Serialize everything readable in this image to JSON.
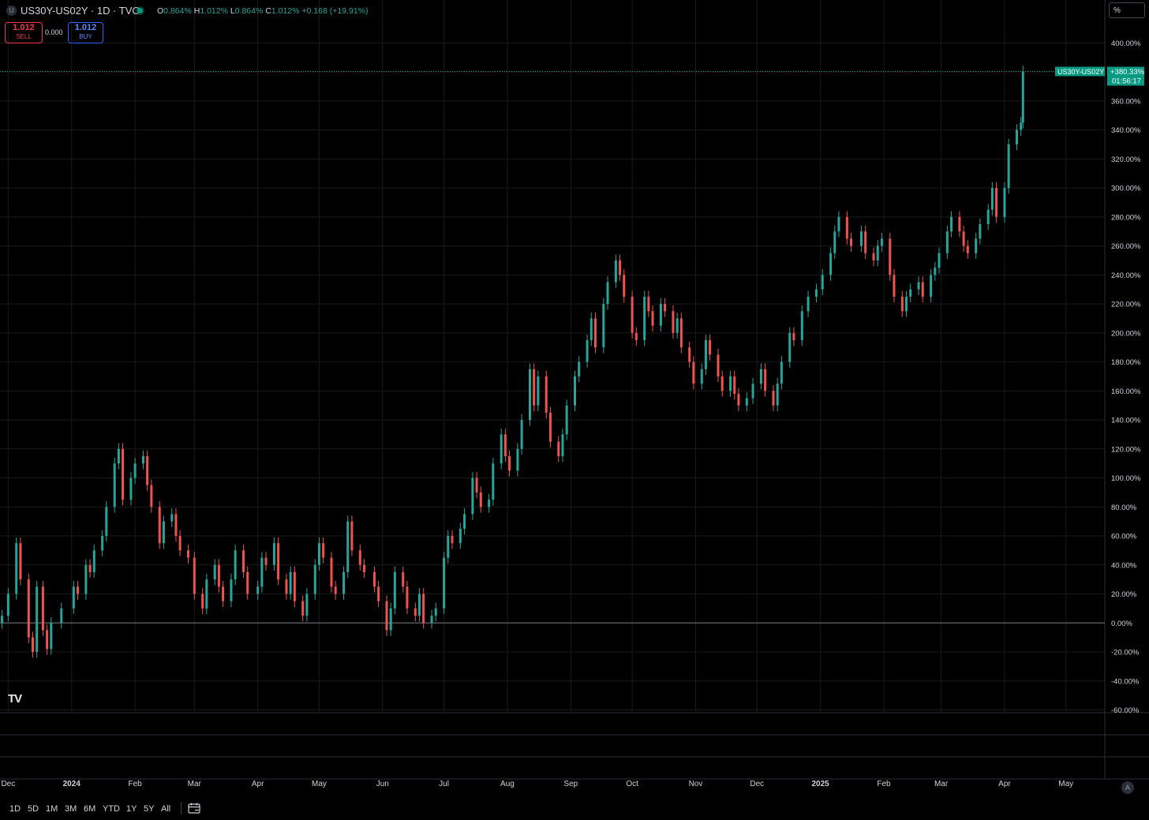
{
  "header": {
    "symbol_title": "US30Y-US02Y · 1D · TVC",
    "ohlc": {
      "o_label": "O",
      "o": "0.864%",
      "h_label": "H",
      "h": "1.012%",
      "l_label": "L",
      "l": "0.864%",
      "c_label": "C",
      "c": "1.012%",
      "change": "+0.168 (+19.91%)"
    },
    "sell": {
      "price": "1.012",
      "label": "SELL"
    },
    "spread": "0.000",
    "buy": {
      "price": "1.012",
      "label": "BUY"
    },
    "scale_mode": "%"
  },
  "colors": {
    "up": "#26a69a",
    "down": "#ef5350",
    "background": "#000000",
    "grid": "#1a1a1a",
    "zero_line": "#787b86",
    "last_price": "#089981"
  },
  "last_price_label": {
    "symbol": "US30Y-US02Y",
    "value": "+380.33%",
    "countdown": "01:56:17"
  },
  "logo_text": "TV",
  "bottom_bar": {
    "ranges": [
      "1D",
      "5D",
      "1M",
      "3M",
      "6M",
      "YTD",
      "1Y",
      "5Y",
      "All"
    ],
    "calendar_icon": "calendar-icon",
    "auto_label": "A"
  },
  "chart_data": {
    "type": "candlestick",
    "title": "",
    "ylim": [
      -60,
      400
    ],
    "y_ticks": [
      "400.00%",
      "380.00%",
      "360.00%",
      "340.00%",
      "320.00%",
      "300.00%",
      "280.00%",
      "260.00%",
      "240.00%",
      "220.00%",
      "200.00%",
      "180.00%",
      "160.00%",
      "140.00%",
      "120.00%",
      "100.00%",
      "80.00%",
      "60.00%",
      "40.00%",
      "20.00%",
      "0.00%",
      "-20.00%",
      "-40.00%",
      "-60.00%"
    ],
    "y_tick_values": [
      400,
      380,
      360,
      340,
      320,
      300,
      280,
      260,
      240,
      220,
      200,
      180,
      160,
      140,
      120,
      100,
      80,
      60,
      40,
      20,
      0,
      -20,
      -40,
      -60
    ],
    "x_labels": [
      "Dec",
      "2024",
      "Feb",
      "Mar",
      "Apr",
      "May",
      "Jun",
      "Jul",
      "Aug",
      "Sep",
      "Oct",
      "Nov",
      "Dec",
      "2025",
      "Feb",
      "Mar",
      "Apr",
      "May"
    ],
    "x_label_bold": [
      "2024",
      "2025"
    ],
    "x_range": [
      "2023-11-27",
      "2025-05-20"
    ],
    "x_label_dates": [
      "2023-12-01",
      "2024-01-01",
      "2024-02-01",
      "2024-03-01",
      "2024-04-01",
      "2024-05-01",
      "2024-06-01",
      "2024-07-01",
      "2024-08-01",
      "2024-09-01",
      "2024-10-01",
      "2024-11-01",
      "2024-12-01",
      "2025-01-01",
      "2025-02-01",
      "2025-03-01",
      "2025-04-01",
      "2025-05-01"
    ],
    "last_value": 380.33,
    "series": [
      {
        "points": [
          [
            "2023-11-28",
            0,
            5
          ],
          [
            "2023-12-01",
            5,
            20
          ],
          [
            "2023-12-05",
            20,
            55
          ],
          [
            "2023-12-07",
            55,
            30
          ],
          [
            "2023-12-11",
            30,
            -10
          ],
          [
            "2023-12-13",
            -10,
            -20
          ],
          [
            "2023-12-15",
            -20,
            25
          ],
          [
            "2023-12-18",
            25,
            -5
          ],
          [
            "2023-12-20",
            -5,
            -18
          ],
          [
            "2023-12-22",
            -18,
            0
          ],
          [
            "2023-12-27",
            0,
            10
          ],
          [
            "2024-01-02",
            10,
            25
          ],
          [
            "2024-01-04",
            25,
            20
          ],
          [
            "2024-01-08",
            20,
            40
          ],
          [
            "2024-01-10",
            40,
            35
          ],
          [
            "2024-01-12",
            35,
            50
          ],
          [
            "2024-01-16",
            50,
            60
          ],
          [
            "2024-01-18",
            60,
            80
          ],
          [
            "2024-01-22",
            80,
            110
          ],
          [
            "2024-01-24",
            110,
            120
          ],
          [
            "2024-01-26",
            120,
            85
          ],
          [
            "2024-01-30",
            85,
            100
          ],
          [
            "2024-02-01",
            100,
            110
          ],
          [
            "2024-02-05",
            110,
            115
          ],
          [
            "2024-02-07",
            115,
            95
          ],
          [
            "2024-02-09",
            95,
            80
          ],
          [
            "2024-02-13",
            80,
            55
          ],
          [
            "2024-02-15",
            55,
            70
          ],
          [
            "2024-02-19",
            70,
            75
          ],
          [
            "2024-02-21",
            75,
            60
          ],
          [
            "2024-02-23",
            60,
            50
          ],
          [
            "2024-02-27",
            50,
            45
          ],
          [
            "2024-03-01",
            45,
            20
          ],
          [
            "2024-03-05",
            20,
            10
          ],
          [
            "2024-03-07",
            10,
            30
          ],
          [
            "2024-03-11",
            30,
            40
          ],
          [
            "2024-03-13",
            40,
            25
          ],
          [
            "2024-03-15",
            25,
            15
          ],
          [
            "2024-03-19",
            15,
            30
          ],
          [
            "2024-03-21",
            30,
            50
          ],
          [
            "2024-03-25",
            50,
            35
          ],
          [
            "2024-03-27",
            35,
            20
          ],
          [
            "2024-04-01",
            20,
            25
          ],
          [
            "2024-04-03",
            25,
            45
          ],
          [
            "2024-04-05",
            45,
            40
          ],
          [
            "2024-04-09",
            40,
            55
          ],
          [
            "2024-04-11",
            55,
            30
          ],
          [
            "2024-04-15",
            30,
            20
          ],
          [
            "2024-04-17",
            20,
            35
          ],
          [
            "2024-04-19",
            35,
            15
          ],
          [
            "2024-04-23",
            15,
            5
          ],
          [
            "2024-04-25",
            5,
            20
          ],
          [
            "2024-04-29",
            20,
            40
          ],
          [
            "2024-05-01",
            40,
            55
          ],
          [
            "2024-05-03",
            55,
            45
          ],
          [
            "2024-05-07",
            45,
            25
          ],
          [
            "2024-05-09",
            25,
            20
          ],
          [
            "2024-05-13",
            20,
            35
          ],
          [
            "2024-05-15",
            35,
            70
          ],
          [
            "2024-05-17",
            70,
            50
          ],
          [
            "2024-05-21",
            50,
            40
          ],
          [
            "2024-05-23",
            40,
            35
          ],
          [
            "2024-05-28",
            35,
            25
          ],
          [
            "2024-05-30",
            25,
            15
          ],
          [
            "2024-06-03",
            15,
            -5
          ],
          [
            "2024-06-05",
            -5,
            10
          ],
          [
            "2024-06-07",
            10,
            35
          ],
          [
            "2024-06-11",
            35,
            25
          ],
          [
            "2024-06-13",
            25,
            10
          ],
          [
            "2024-06-17",
            10,
            5
          ],
          [
            "2024-06-19",
            5,
            20
          ],
          [
            "2024-06-21",
            20,
            0
          ],
          [
            "2024-06-25",
            0,
            5
          ],
          [
            "2024-06-27",
            5,
            10
          ],
          [
            "2024-07-01",
            10,
            45
          ],
          [
            "2024-07-03",
            45,
            60
          ],
          [
            "2024-07-05",
            60,
            55
          ],
          [
            "2024-07-09",
            55,
            65
          ],
          [
            "2024-07-11",
            65,
            75
          ],
          [
            "2024-07-15",
            75,
            100
          ],
          [
            "2024-07-17",
            100,
            90
          ],
          [
            "2024-07-19",
            90,
            80
          ],
          [
            "2024-07-23",
            80,
            85
          ],
          [
            "2024-07-25",
            85,
            110
          ],
          [
            "2024-07-29",
            110,
            130
          ],
          [
            "2024-07-31",
            130,
            115
          ],
          [
            "2024-08-02",
            115,
            105
          ],
          [
            "2024-08-06",
            105,
            120
          ],
          [
            "2024-08-08",
            120,
            140
          ],
          [
            "2024-08-12",
            140,
            175
          ],
          [
            "2024-08-14",
            175,
            150
          ],
          [
            "2024-08-16",
            150,
            170
          ],
          [
            "2024-08-20",
            170,
            145
          ],
          [
            "2024-08-22",
            145,
            125
          ],
          [
            "2024-08-26",
            125,
            115
          ],
          [
            "2024-08-28",
            115,
            130
          ],
          [
            "2024-08-30",
            130,
            150
          ],
          [
            "2024-09-03",
            150,
            170
          ],
          [
            "2024-09-05",
            170,
            180
          ],
          [
            "2024-09-09",
            180,
            195
          ],
          [
            "2024-09-11",
            195,
            210
          ],
          [
            "2024-09-13",
            210,
            190
          ],
          [
            "2024-09-17",
            190,
            220
          ],
          [
            "2024-09-19",
            220,
            235
          ],
          [
            "2024-09-23",
            235,
            250
          ],
          [
            "2024-09-25",
            250,
            240
          ],
          [
            "2024-09-27",
            240,
            225
          ],
          [
            "2024-10-01",
            225,
            200
          ],
          [
            "2024-10-03",
            200,
            195
          ],
          [
            "2024-10-07",
            195,
            225
          ],
          [
            "2024-10-09",
            225,
            215
          ],
          [
            "2024-10-11",
            215,
            205
          ],
          [
            "2024-10-15",
            205,
            220
          ],
          [
            "2024-10-17",
            220,
            215
          ],
          [
            "2024-10-21",
            215,
            200
          ],
          [
            "2024-10-23",
            200,
            210
          ],
          [
            "2024-10-25",
            210,
            190
          ],
          [
            "2024-10-29",
            190,
            180
          ],
          [
            "2024-10-31",
            180,
            165
          ],
          [
            "2024-11-04",
            165,
            175
          ],
          [
            "2024-11-06",
            175,
            195
          ],
          [
            "2024-11-08",
            195,
            185
          ],
          [
            "2024-11-12",
            185,
            170
          ],
          [
            "2024-11-14",
            170,
            160
          ],
          [
            "2024-11-18",
            160,
            170
          ],
          [
            "2024-11-20",
            170,
            158
          ],
          [
            "2024-11-22",
            158,
            150
          ],
          [
            "2024-11-26",
            150,
            155
          ],
          [
            "2024-11-29",
            155,
            165
          ],
          [
            "2024-12-03",
            165,
            175
          ],
          [
            "2024-12-05",
            175,
            160
          ],
          [
            "2024-12-09",
            160,
            150
          ],
          [
            "2024-12-11",
            150,
            165
          ],
          [
            "2024-12-13",
            165,
            180
          ],
          [
            "2024-12-17",
            180,
            200
          ],
          [
            "2024-12-19",
            200,
            195
          ],
          [
            "2024-12-23",
            195,
            215
          ],
          [
            "2024-12-26",
            215,
            225
          ],
          [
            "2024-12-30",
            225,
            230
          ],
          [
            "2025-01-02",
            230,
            240
          ],
          [
            "2025-01-06",
            240,
            255
          ],
          [
            "2025-01-08",
            255,
            270
          ],
          [
            "2025-01-10",
            270,
            280
          ],
          [
            "2025-01-14",
            280,
            265
          ],
          [
            "2025-01-16",
            265,
            260
          ],
          [
            "2025-01-21",
            260,
            270
          ],
          [
            "2025-01-23",
            270,
            255
          ],
          [
            "2025-01-27",
            255,
            250
          ],
          [
            "2025-01-29",
            250,
            260
          ],
          [
            "2025-01-31",
            260,
            265
          ],
          [
            "2025-02-04",
            265,
            240
          ],
          [
            "2025-02-06",
            240,
            225
          ],
          [
            "2025-02-10",
            225,
            215
          ],
          [
            "2025-02-12",
            215,
            225
          ],
          [
            "2025-02-14",
            225,
            230
          ],
          [
            "2025-02-18",
            230,
            235
          ],
          [
            "2025-02-20",
            235,
            225
          ],
          [
            "2025-02-24",
            225,
            240
          ],
          [
            "2025-02-26",
            240,
            245
          ],
          [
            "2025-02-28",
            245,
            255
          ],
          [
            "2025-03-04",
            255,
            270
          ],
          [
            "2025-03-06",
            270,
            280
          ],
          [
            "2025-03-10",
            280,
            270
          ],
          [
            "2025-03-12",
            270,
            260
          ],
          [
            "2025-03-14",
            260,
            255
          ],
          [
            "2025-03-18",
            255,
            265
          ],
          [
            "2025-03-20",
            265,
            275
          ],
          [
            "2025-03-24",
            275,
            285
          ],
          [
            "2025-03-26",
            285,
            300
          ],
          [
            "2025-03-28",
            300,
            280
          ],
          [
            "2025-04-01",
            280,
            300
          ],
          [
            "2025-04-03",
            300,
            330
          ],
          [
            "2025-04-07",
            330,
            340
          ],
          [
            "2025-04-09",
            340,
            345
          ],
          [
            "2025-04-10",
            345,
            380.33
          ]
        ]
      }
    ]
  }
}
